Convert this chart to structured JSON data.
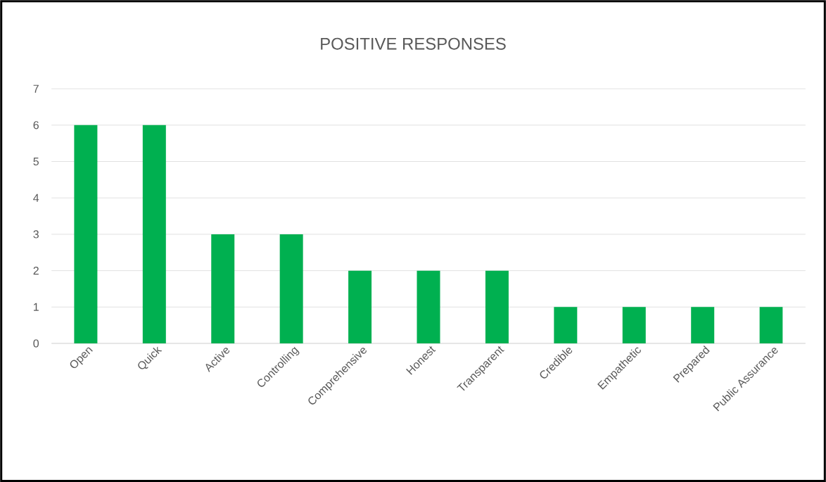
{
  "chart_data": {
    "type": "bar",
    "title": "POSITIVE RESPONSES",
    "categories": [
      "Open",
      "Quick",
      "Active",
      "Controlling",
      "Comprehensive",
      "Honest",
      "Transparent",
      "Credible",
      "Empathetic",
      "Prepared",
      "Public Assurance"
    ],
    "values": [
      6,
      6,
      3,
      3,
      2,
      2,
      2,
      1,
      1,
      1,
      1
    ],
    "color": "#00b050",
    "ylim": [
      0,
      7
    ],
    "yticks": [
      0,
      1,
      2,
      3,
      4,
      5,
      6,
      7
    ],
    "grid": "y"
  }
}
